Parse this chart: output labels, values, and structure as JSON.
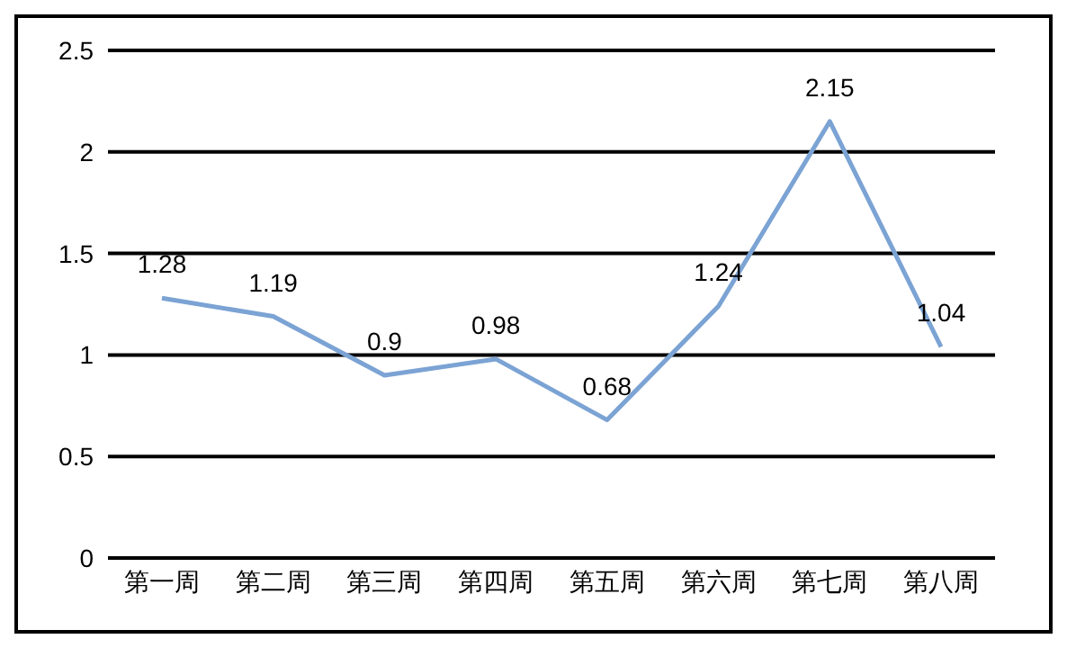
{
  "chart_data": {
    "type": "line",
    "categories": [
      "第一周",
      "第二周",
      "第三周",
      "第四周",
      "第五周",
      "第六周",
      "第七周",
      "第八周"
    ],
    "series": [
      {
        "color": "#7ba3d4",
        "values": [
          1.28,
          1.19,
          0.9,
          0.98,
          0.68,
          1.24,
          2.15,
          1.04
        ]
      }
    ],
    "ylim": [
      0,
      2.5
    ],
    "yticks": [
      0,
      0.5,
      1,
      1.5,
      2,
      2.5
    ],
    "grid": "y",
    "data_labels": true,
    "marker": "none",
    "line_style": "solid",
    "legend": false
  }
}
